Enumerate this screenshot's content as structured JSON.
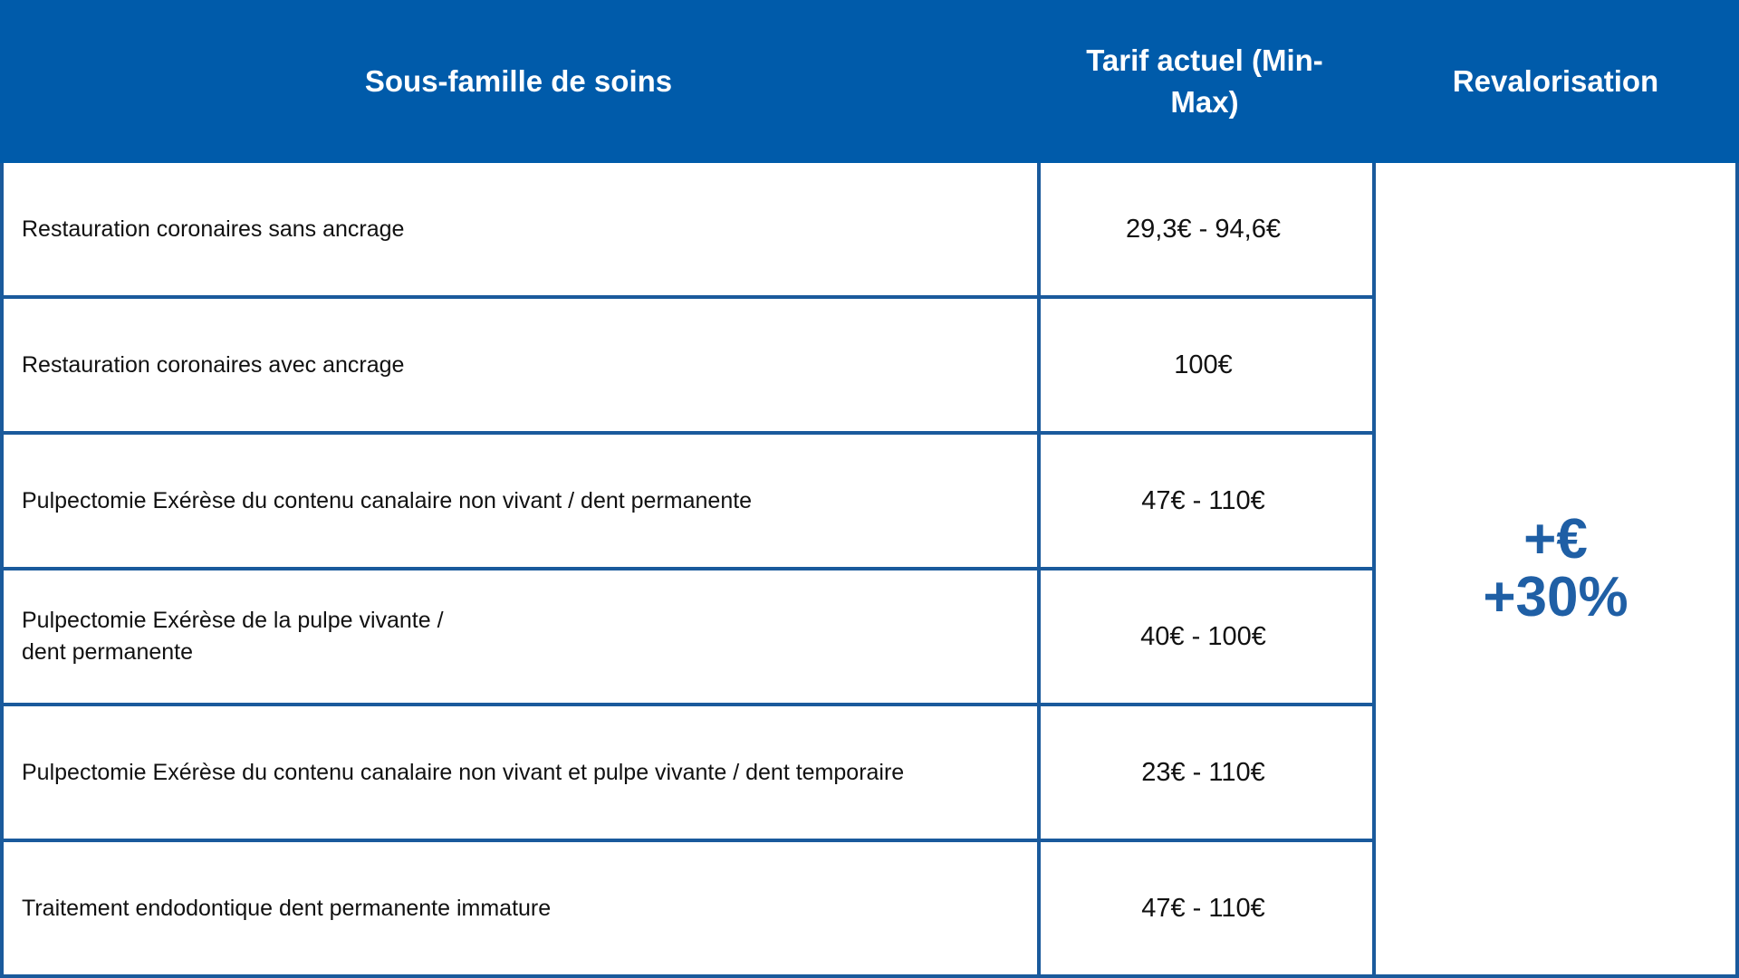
{
  "header": {
    "col1": "Sous-famille de soins",
    "col2": "Tarif actuel (Min-\nMax)",
    "col3": "Revalorisation"
  },
  "rows": [
    {
      "label": "Restauration coronaires sans ancrage",
      "tarif": "29,3€ - 94,6€"
    },
    {
      "label": "Restauration coronaires avec ancrage",
      "tarif": "100€"
    },
    {
      "label": "Pulpectomie Exérèse du contenu canalaire non vivant / dent permanente",
      "tarif": "47€ - 110€"
    },
    {
      "label": "Pulpectomie Exérèse de la pulpe vivante /\n dent permanente",
      "tarif": "40€ - 100€"
    },
    {
      "label": "Pulpectomie Exérèse du contenu canalaire non vivant et pulpe vivante / dent temporaire",
      "tarif": "23€ - 110€"
    },
    {
      "label": "Traitement endodontique dent permanente immature",
      "tarif": "47€ - 110€"
    }
  ],
  "revalorisation": {
    "line1": "+€",
    "line2": "+30%"
  },
  "colors": {
    "header_bg": "#005baa",
    "border": "#1a5a9c",
    "accent_text": "#1f5fa5"
  }
}
